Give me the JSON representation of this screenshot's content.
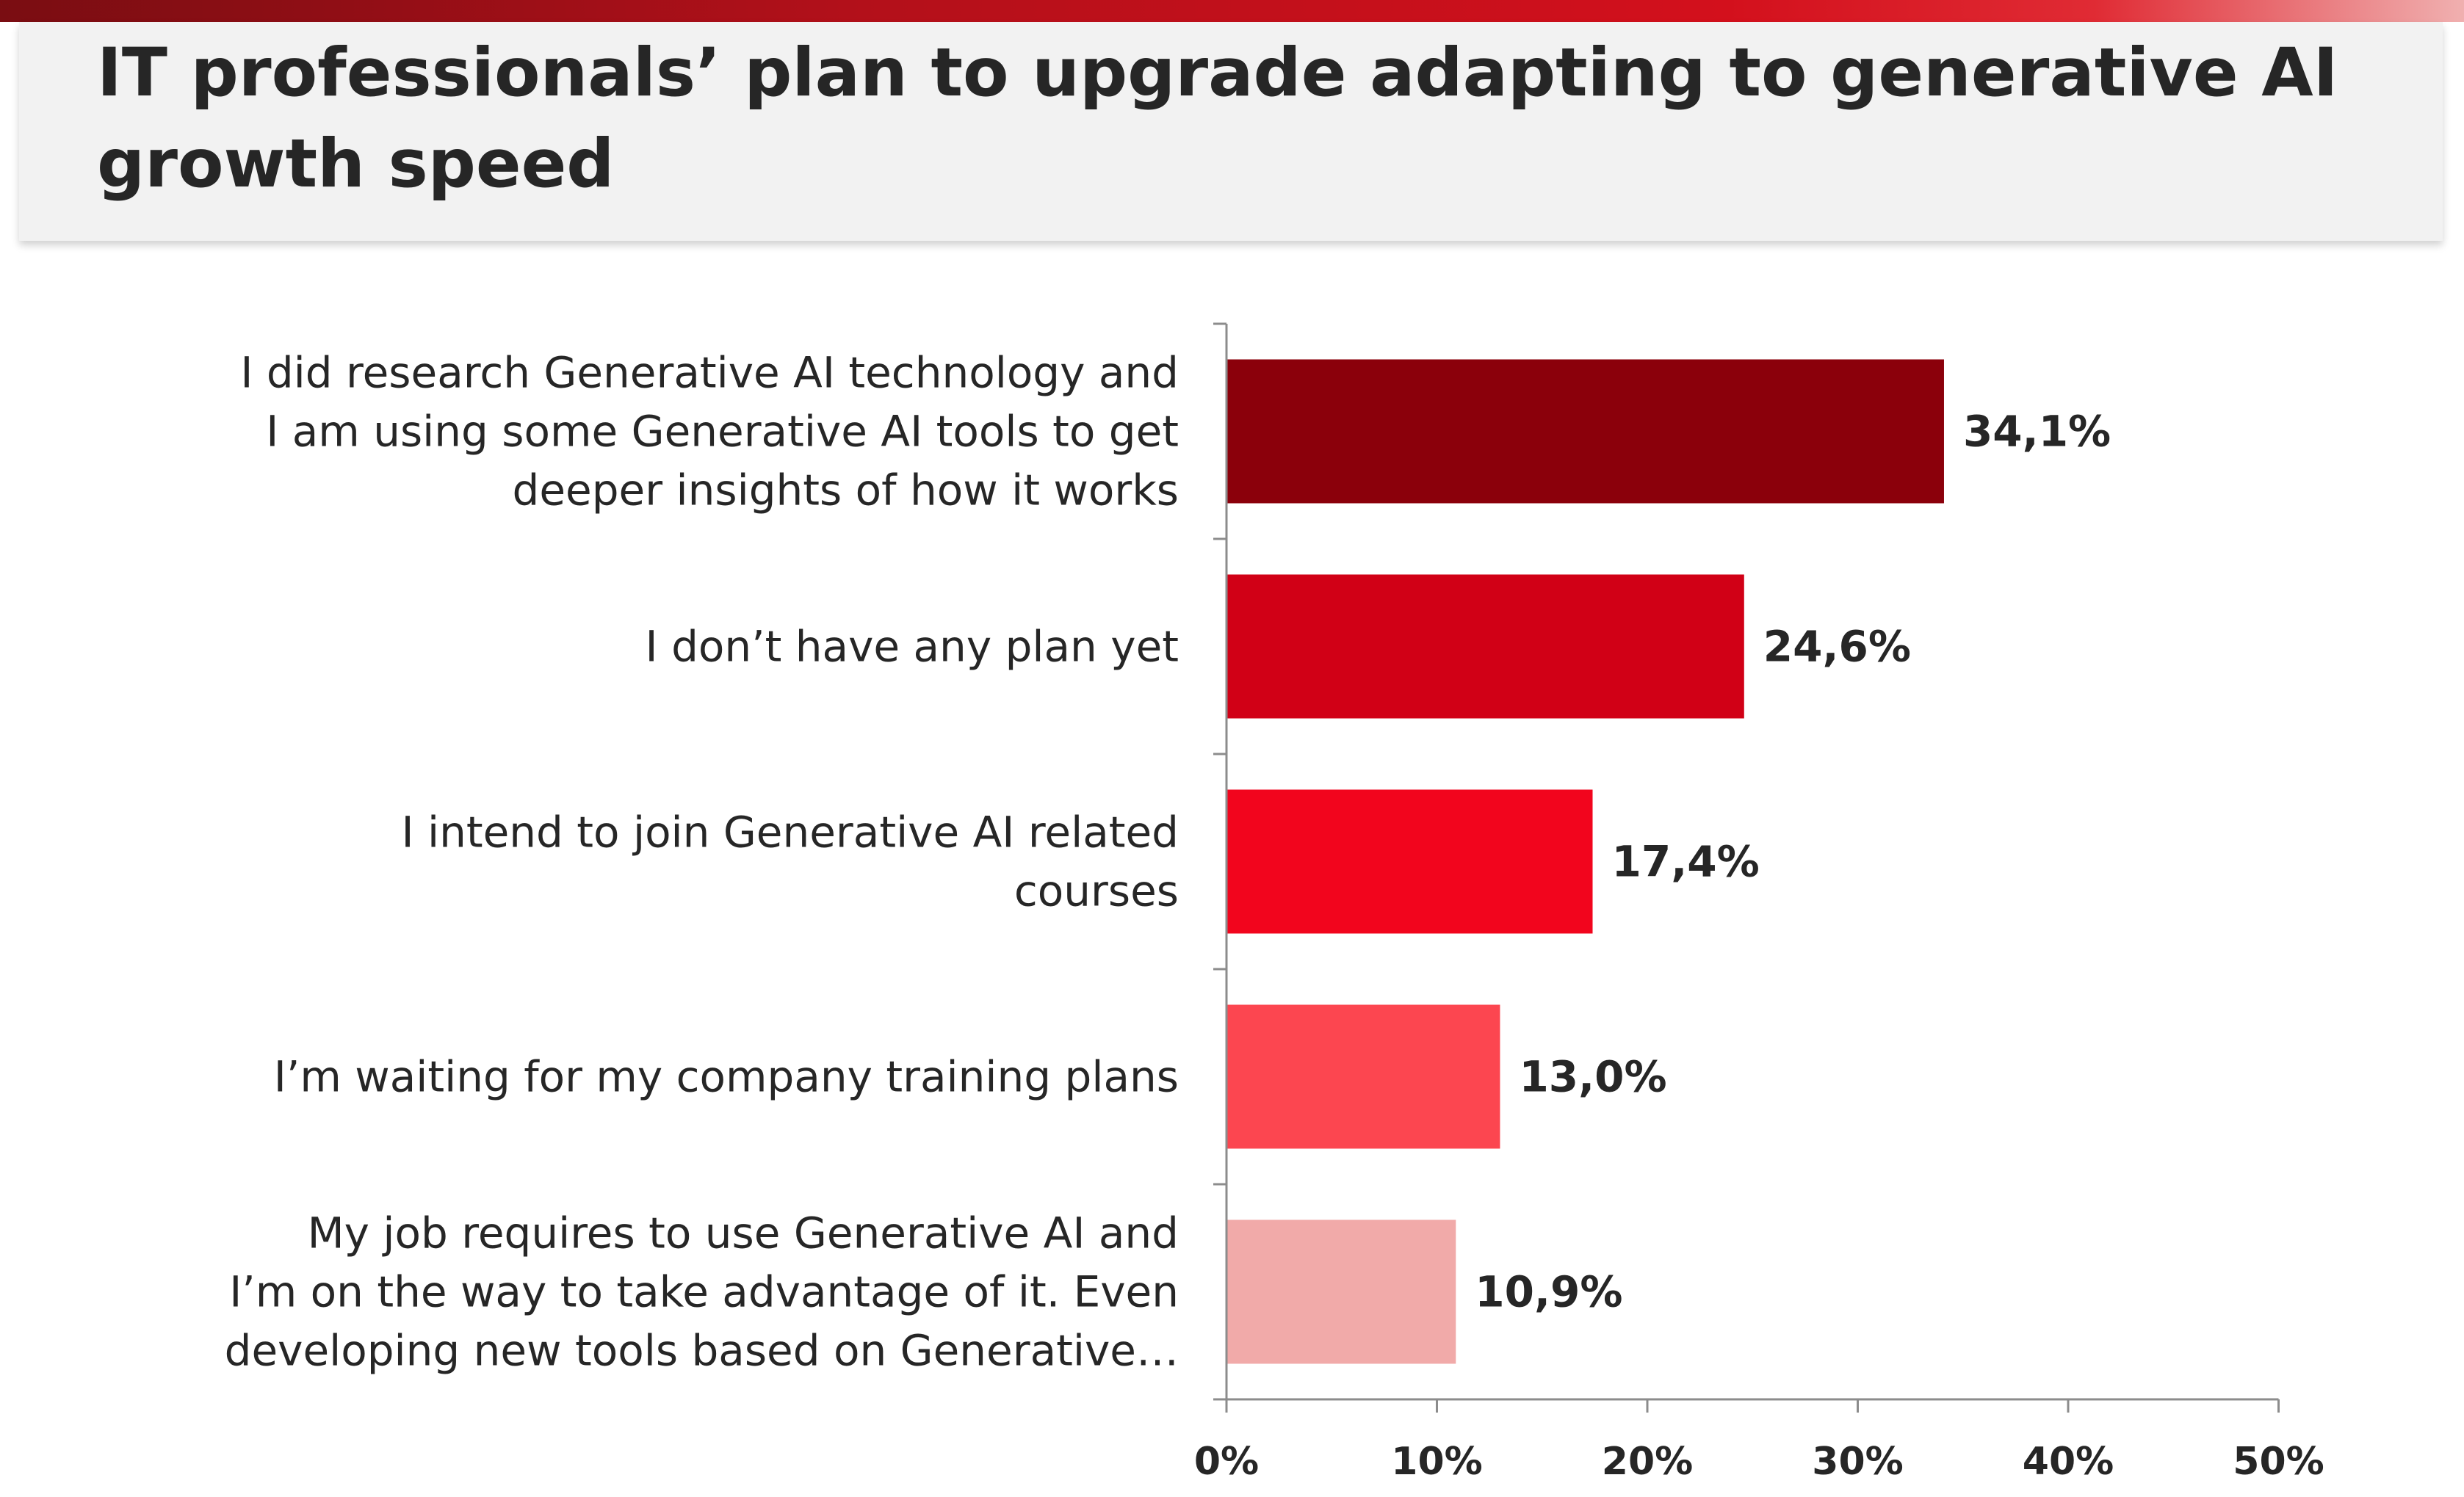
{
  "title": "IT professionals’ plan to upgrade adapting to generative AI growth speed",
  "chart_data": {
    "type": "bar",
    "orientation": "horizontal",
    "title": "IT professionals’ plan to upgrade adapting to generative AI growth speed",
    "categories": [
      [
        "I did research Generative AI technology and",
        "I am using some Generative AI tools to get",
        "deeper insights of how it works"
      ],
      [
        "I don’t have any plan yet"
      ],
      [
        "I intend to join Generative AI related",
        "courses"
      ],
      [
        "I’m waiting for my company training plans"
      ],
      [
        "My job requires to use Generative AI and",
        "I’m on the way to take advantage of it. Even",
        "developing new tools based on Generative…"
      ]
    ],
    "values": [
      34.1,
      24.6,
      17.4,
      13.0,
      10.9
    ],
    "value_labels": [
      "34,1%",
      "24,6%",
      "17,4%",
      "13,0%",
      "10,9%"
    ],
    "colors": [
      "#8b000b",
      "#d10016",
      "#f2051d",
      "#fc4650",
      "#f1aaa9"
    ],
    "xlim": [
      0,
      50
    ],
    "xticks": [
      0,
      10,
      20,
      30,
      40,
      50
    ],
    "xtick_labels": [
      "0%",
      "10%",
      "20%",
      "30%",
      "40%",
      "50%"
    ],
    "grid": false,
    "legend": "none"
  }
}
